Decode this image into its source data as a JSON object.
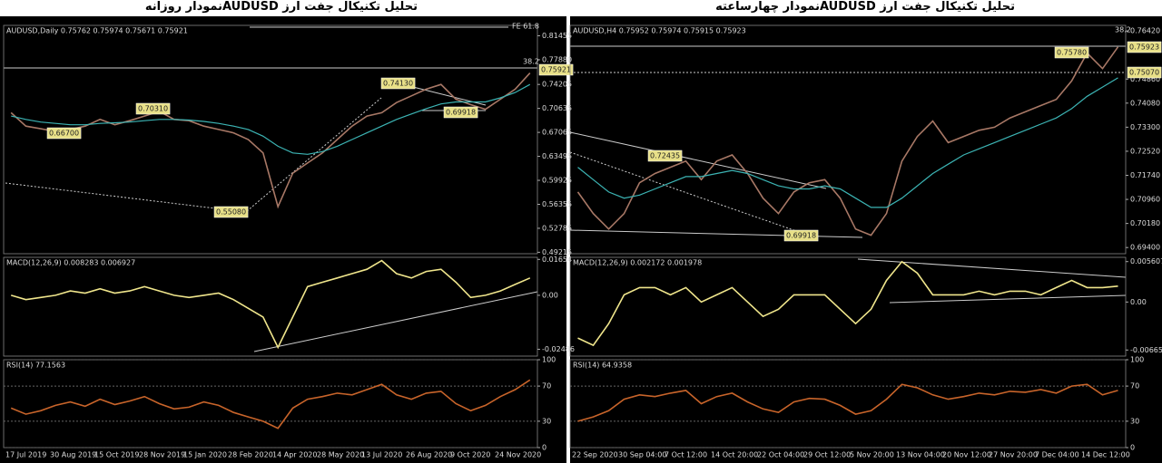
{
  "header": {
    "left_title": "تحلیل تکنیکال جفت ارز  AUDUSDنمودار روزانه",
    "right_title": "تحلیل تکنیکال جفت ارز  AUDUSDنمودار چهارساعته"
  },
  "chart_data": [
    {
      "type": "line",
      "title": "AUDUSD,Daily  0.75762 0.75974 0.75671 0.75921",
      "ylim": [
        0.49,
        0.83
      ],
      "yticks": [
        0.81455,
        {
          "value": 0.7788,
          "label": "0.77880"
        },
        0.74205,
        0.70635,
        0.67065,
        0.63495,
        0.59925,
        0.56355,
        0.52785,
        0.49215
      ],
      "series": [
        {
          "name": "AUDUSD",
          "color": "#a87866",
          "values": [
            0.7,
            0.68,
            0.676,
            0.672,
            0.675,
            0.68,
            0.69,
            0.682,
            0.688,
            0.695,
            0.702,
            0.69,
            0.688,
            0.68,
            0.675,
            0.67,
            0.66,
            0.64,
            0.56,
            0.61,
            0.625,
            0.64,
            0.66,
            0.68,
            0.695,
            0.7,
            0.715,
            0.725,
            0.735,
            0.742,
            0.72,
            0.712,
            0.705,
            0.72,
            0.735,
            0.759
          ]
        },
        {
          "name": "MA",
          "color": "#3cb4b4",
          "values": [
            0.695,
            0.69,
            0.686,
            0.684,
            0.682,
            0.682,
            0.684,
            0.685,
            0.686,
            0.688,
            0.69,
            0.69,
            0.689,
            0.687,
            0.684,
            0.68,
            0.675,
            0.665,
            0.65,
            0.64,
            0.638,
            0.642,
            0.65,
            0.66,
            0.67,
            0.68,
            0.69,
            0.698,
            0.706,
            0.713,
            0.716,
            0.716,
            0.716,
            0.722,
            0.73,
            0.742
          ]
        }
      ],
      "annotations": [
        "FE 61.8",
        "38.2",
        "0.75921",
        "0.66700",
        "0.70310",
        "0.74130",
        "0.69918",
        "0.55080"
      ]
    },
    {
      "type": "line",
      "title": "MACD(12,26,9) 0.008283 0.006927",
      "ylim": [
        -0.028,
        0.0175
      ],
      "yticks": [
        0.01654,
        {
          "value": 0,
          "label": "0.00"
        },
        -0.02486
      ],
      "series": [
        {
          "name": "MACD",
          "color": "#f0e68c",
          "values": [
            0.0,
            -0.002,
            -0.001,
            0.0,
            0.002,
            0.001,
            0.003,
            0.001,
            0.002,
            0.004,
            0.002,
            0.0,
            -0.001,
            0.0,
            0.001,
            -0.002,
            -0.006,
            -0.01,
            -0.024,
            -0.01,
            0.004,
            0.006,
            0.008,
            0.01,
            0.012,
            0.016,
            0.01,
            0.008,
            0.011,
            0.012,
            0.006,
            -0.001,
            0.0,
            0.002,
            0.005,
            0.008
          ]
        }
      ],
      "annotations": []
    },
    {
      "type": "line",
      "title": "RSI(14) 77.1563",
      "ylim": [
        0,
        100
      ],
      "yticks": [
        100,
        70,
        30,
        0
      ],
      "grid": true,
      "categories": [
        "17 Jul 2019",
        null,
        null,
        "30 Aug 2019",
        null,
        null,
        "15 Oct 2019",
        null,
        null,
        "28 Nov 2019",
        null,
        null,
        "15 Jan 2020",
        null,
        null,
        "28 Feb 2020",
        null,
        null,
        "14 Apr 2020",
        null,
        null,
        "28 May 2020",
        null,
        null,
        "13 Jul 2020",
        null,
        null,
        "26 Aug 2020",
        null,
        null,
        "9 Oct 2020",
        null,
        null,
        "24 Nov 2020",
        null,
        null
      ],
      "series": [
        {
          "name": "RSI",
          "color": "#c8642a",
          "values": [
            45,
            38,
            42,
            48,
            52,
            47,
            55,
            49,
            53,
            58,
            50,
            44,
            46,
            52,
            48,
            40,
            35,
            30,
            22,
            45,
            55,
            58,
            62,
            60,
            66,
            72,
            60,
            55,
            62,
            64,
            50,
            42,
            48,
            58,
            66,
            77
          ]
        }
      ],
      "annotations": []
    },
    {
      "type": "line",
      "title": "AUDUSD,H4  0.75952 0.75974 0.75915 0.75923",
      "ylim": [
        0.692,
        0.766
      ],
      "yticks": [
        {
          "value": 0.7642,
          "label": "0.76420"
        },
        {
          "value": 0.7486,
          "label": "0.74860"
        },
        {
          "value": 0.7408,
          "label": "0.74080"
        },
        {
          "value": 0.733,
          "label": "0.73300"
        },
        {
          "value": 0.7252,
          "label": "0.72520"
        },
        {
          "value": 0.7174,
          "label": "0.71740"
        },
        {
          "value": 0.7096,
          "label": "0.70960"
        },
        {
          "value": 0.7018,
          "label": "0.70180"
        },
        {
          "value": 0.694,
          "label": "0.69400"
        }
      ],
      "series": [
        {
          "name": "AUDUSD",
          "color": "#a87866",
          "values": [
            0.712,
            0.705,
            0.7,
            0.705,
            0.715,
            0.718,
            0.72,
            0.722,
            0.716,
            0.722,
            0.724,
            0.718,
            0.71,
            0.705,
            0.712,
            0.715,
            0.716,
            0.71,
            0.7,
            0.698,
            0.705,
            0.722,
            0.73,
            0.735,
            0.728,
            0.73,
            0.732,
            0.733,
            0.736,
            0.738,
            0.74,
            0.742,
            0.748,
            0.757,
            0.752,
            0.759
          ]
        },
        {
          "name": "MA",
          "color": "#3cb4b4",
          "values": [
            0.72,
            0.716,
            0.712,
            0.71,
            0.711,
            0.713,
            0.715,
            0.717,
            0.717,
            0.718,
            0.719,
            0.718,
            0.716,
            0.714,
            0.713,
            0.713,
            0.714,
            0.713,
            0.71,
            0.707,
            0.707,
            0.71,
            0.714,
            0.718,
            0.721,
            0.724,
            0.726,
            0.728,
            0.73,
            0.732,
            0.734,
            0.736,
            0.739,
            0.743,
            0.746,
            0.749
          ]
        }
      ],
      "annotations": [
        "38.2",
        "0.75923",
        "0.75070",
        "0.72435",
        "0.69918",
        "0.75780"
      ]
    },
    {
      "type": "line",
      "title": "MACD(12,26,9) 0.002172 0.001978",
      "ylim": [
        -0.0075,
        0.0062
      ],
      "yticks": [
        0.005607,
        {
          "value": 0,
          "label": "0.00"
        },
        -0.006656
      ],
      "series": [
        {
          "name": "MACD",
          "color": "#f0e68c",
          "values": [
            -0.005,
            -0.006,
            -0.003,
            0.001,
            0.002,
            0.002,
            0.001,
            0.002,
            0.0,
            0.001,
            0.002,
            0.0,
            -0.002,
            -0.001,
            0.001,
            0.001,
            0.001,
            -0.001,
            -0.003,
            -0.001,
            0.003,
            0.0056,
            0.004,
            0.001,
            0.001,
            0.001,
            0.0015,
            0.001,
            0.0015,
            0.0015,
            0.001,
            0.002,
            0.003,
            0.002,
            0.002,
            0.0022
          ]
        }
      ],
      "annotations": []
    },
    {
      "type": "line",
      "title": "RSI(14) 64.9358",
      "ylim": [
        0,
        100
      ],
      "yticks": [
        100,
        70,
        30,
        0
      ],
      "grid": true,
      "categories": [
        "22 Sep 2020",
        null,
        null,
        "30 Sep 04:00",
        null,
        null,
        "7 Oct 12:00",
        null,
        null,
        "14 Oct 20:00",
        null,
        null,
        "22 Oct 04:00",
        null,
        null,
        "29 Oct 12:00",
        null,
        null,
        "5 Nov 20:00",
        null,
        null,
        "13 Nov 04:00",
        null,
        null,
        "20 Nov 12:00",
        null,
        null,
        "27 Nov 20:00",
        null,
        null,
        "7 Dec 04:00",
        null,
        null,
        "14 Dec 12:00",
        null,
        null
      ],
      "series": [
        {
          "name": "RSI",
          "color": "#c8642a",
          "values": [
            30,
            35,
            42,
            55,
            60,
            58,
            62,
            65,
            50,
            58,
            62,
            52,
            44,
            40,
            52,
            56,
            55,
            48,
            38,
            42,
            55,
            72,
            68,
            60,
            55,
            58,
            62,
            60,
            64,
            63,
            66,
            62,
            70,
            72,
            60,
            65
          ]
        }
      ],
      "annotations": []
    }
  ]
}
